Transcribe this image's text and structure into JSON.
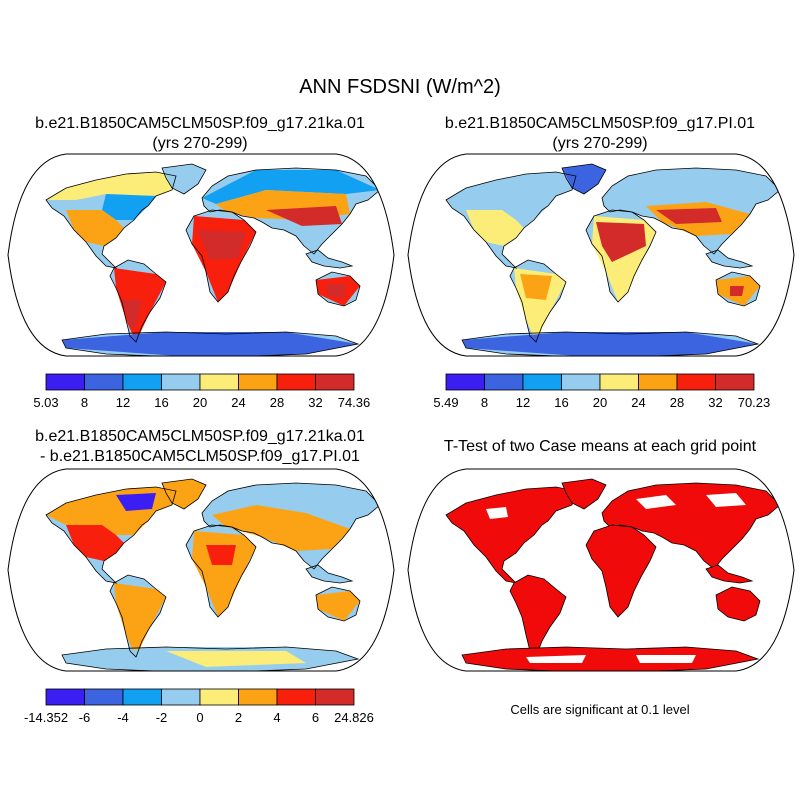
{
  "main_title": "ANN FSDSNI (W/m^2)",
  "panels": [
    {
      "title_line1": "b.e21.B1850CAM5CLM50SP.f09_g17.21ka.01",
      "title_line2": "(yrs 270-299)"
    },
    {
      "title_line1": "b.e21.B1850CAM5CLM50SP.f09_g17.PI.01",
      "title_line2": "(yrs 270-299)"
    },
    {
      "title_line1": "b.e21.B1850CAM5CLM50SP.f09_g17.21ka.01",
      "title_line2": "- b.e21.B1850CAM5CLM50SP.f09_g17.PI.01"
    },
    {
      "title_line1": "T-Test of two Case means at each grid point",
      "note": "Cells are significant at 0.1 level"
    }
  ],
  "colorbars": [
    {
      "labels": [
        "5.03",
        "8",
        "12",
        "16",
        "20",
        "24",
        "28",
        "32",
        "74.36"
      ],
      "colors": [
        "#3a1ef2",
        "#3c64e0",
        "#12a0f2",
        "#96cdee",
        "#fbed78",
        "#fca315",
        "#f81f0d",
        "#d32a2a"
      ]
    },
    {
      "labels": [
        "5.49",
        "8",
        "12",
        "16",
        "20",
        "24",
        "28",
        "32",
        "70.23"
      ],
      "colors": [
        "#3a1ef2",
        "#3c64e0",
        "#12a0f2",
        "#96cdee",
        "#fbed78",
        "#fca315",
        "#f81f0d",
        "#d32a2a"
      ]
    },
    {
      "labels": [
        "-14.352",
        "-6",
        "-4",
        "-2",
        "0",
        "2",
        "4",
        "6",
        "24.826"
      ],
      "colors": [
        "#3a1ef2",
        "#3c64e0",
        "#12a0f2",
        "#96cdee",
        "#fbed78",
        "#fca315",
        "#f81f0d",
        "#d32a2a"
      ]
    }
  ],
  "colors": {
    "significance": "#f00a0a",
    "ocean": "#ffffff"
  }
}
